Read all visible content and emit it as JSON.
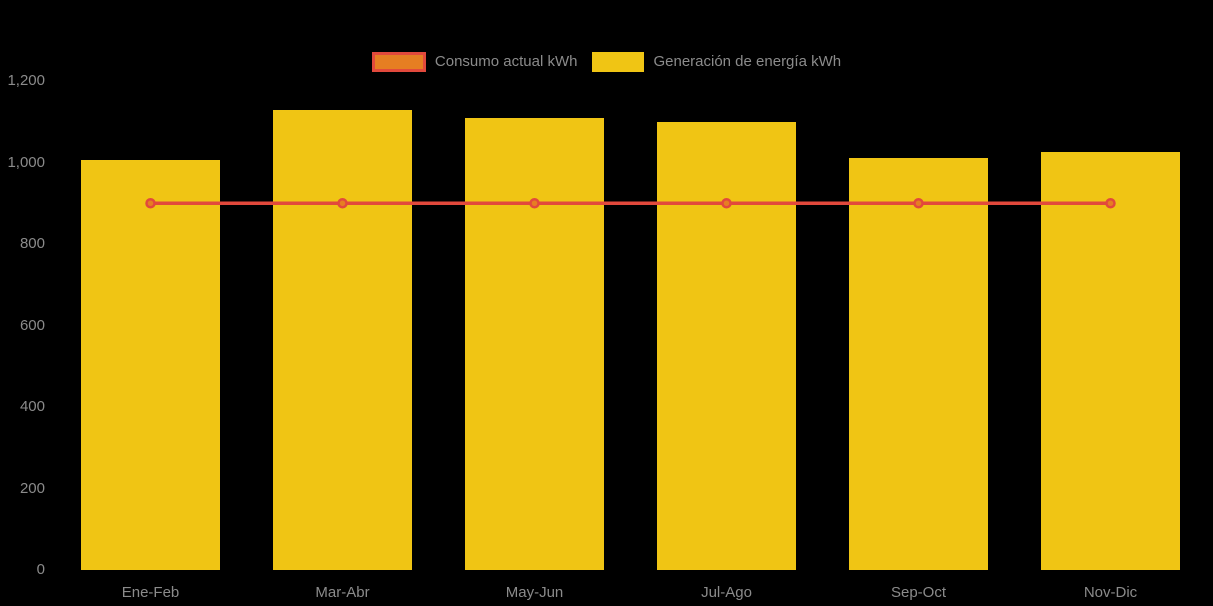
{
  "background_color": "#000000",
  "text_color": "#8b8b8b",
  "legend": {
    "items": [
      {
        "label": "Consumo actual kWh",
        "swatch_fill": "#e67e22",
        "swatch_border": "#e2493c",
        "series_type": "line"
      },
      {
        "label": "Generación de energía kWh",
        "swatch_fill": "#f0c514",
        "swatch_border": "#f0c514",
        "series_type": "bar"
      }
    ]
  },
  "chart_data": {
    "type": "bar",
    "subtype": "bar-line-combo",
    "title": "",
    "xlabel": "",
    "ylabel": "",
    "categories": [
      "Ene-Feb",
      "Mar-Abr",
      "May-Jun",
      "Jul-Ago",
      "Sep-Oct",
      "Nov-Dic"
    ],
    "series": [
      {
        "name": "Generación de energía kWh",
        "type": "bar",
        "color": "#f0c514",
        "values": [
          1005,
          1130,
          1110,
          1100,
          1010,
          1025
        ]
      },
      {
        "name": "Consumo actual kWh",
        "type": "line",
        "color": "#e2493c",
        "marker_fill": "#e67e22",
        "marker_stroke": "#e2493c",
        "values": [
          900,
          900,
          900,
          900,
          900,
          900
        ]
      }
    ],
    "ylim": [
      0,
      1200
    ],
    "y_ticks": [
      0,
      200,
      400,
      600,
      800,
      1000,
      1200
    ],
    "y_tick_labels": [
      "0",
      "200",
      "400",
      "600",
      "800",
      "1,000",
      "1,200"
    ],
    "grid": false,
    "legend_position": "top-center"
  }
}
